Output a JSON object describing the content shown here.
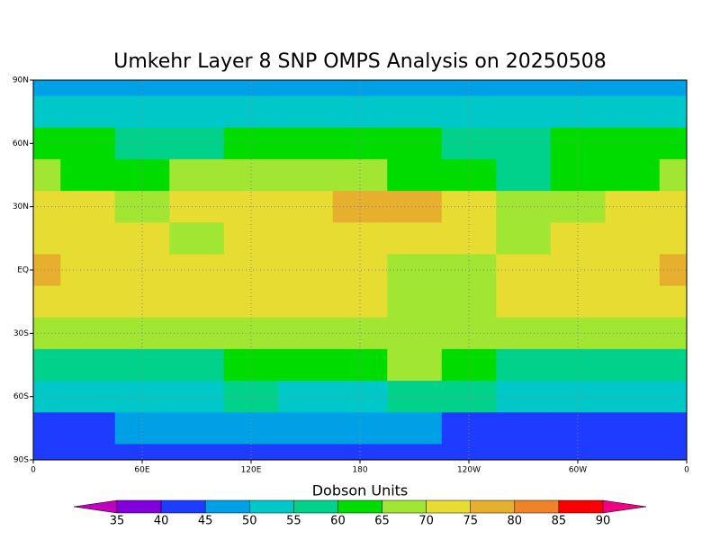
{
  "chart_data": {
    "type": "contour",
    "title": "Umkehr Layer 8 SNP OMPS Analysis on 20250508",
    "x": [
      0,
      30,
      60,
      90,
      120,
      150,
      180,
      210,
      240,
      270,
      300,
      330,
      360
    ],
    "y": [
      90,
      75,
      60,
      45,
      30,
      15,
      0,
      -15,
      -30,
      -45,
      -60,
      -75,
      -90
    ],
    "z": [
      [
        48,
        48,
        48,
        48,
        48,
        48,
        48,
        48,
        48,
        48,
        48,
        48,
        48
      ],
      [
        50,
        52,
        52,
        53,
        53,
        52,
        52,
        52,
        52,
        52,
        52,
        51,
        50
      ],
      [
        62,
        61,
        59,
        57,
        60,
        62,
        61,
        60,
        58,
        57,
        60,
        62,
        62
      ],
      [
        65,
        62,
        60,
        66,
        67,
        68,
        66,
        62,
        60,
        58,
        60,
        63,
        65
      ],
      [
        70,
        70,
        68,
        72,
        73,
        72,
        75,
        78,
        72,
        68,
        66,
        70,
        70
      ],
      [
        72,
        73,
        71,
        69,
        72,
        74,
        72,
        72,
        70,
        68,
        70,
        72,
        72
      ],
      [
        77,
        72,
        72,
        71,
        72,
        71,
        72,
        69,
        69,
        71,
        70,
        74,
        77
      ],
      [
        70,
        72,
        72,
        72,
        70,
        70,
        70,
        68,
        68,
        70,
        72,
        72,
        70
      ],
      [
        66,
        66,
        67,
        67,
        66,
        66,
        66,
        66,
        68,
        66,
        66,
        65,
        66
      ],
      [
        58,
        58,
        58,
        58,
        60,
        62,
        63,
        68,
        62,
        57,
        58,
        58,
        58
      ],
      [
        52,
        52,
        52,
        53,
        55,
        52,
        54,
        55,
        55,
        52,
        53,
        52,
        52
      ],
      [
        43,
        44,
        45,
        47,
        46,
        47,
        46,
        45,
        44,
        42,
        43,
        43,
        43
      ],
      [
        42,
        42,
        42,
        42,
        42,
        42,
        42,
        42,
        42,
        42,
        42,
        42,
        42
      ]
    ],
    "xlim": [
      0,
      360
    ],
    "ylim": [
      -90,
      90
    ],
    "xticks": [
      {
        "value": 0,
        "label": "0"
      },
      {
        "value": 60,
        "label": "60E"
      },
      {
        "value": 120,
        "label": "120E"
      },
      180,
      {
        "value": 240,
        "label": "120W"
      },
      {
        "value": 300,
        "label": "60W"
      },
      {
        "value": 360,
        "label": "0"
      }
    ],
    "yticks": [
      {
        "value": -90,
        "label": "90S"
      },
      {
        "value": -60,
        "label": "60S"
      },
      {
        "value": -30,
        "label": "30S"
      },
      {
        "value": 0,
        "label": "EQ"
      },
      {
        "value": 30,
        "label": "30N"
      },
      {
        "value": 60,
        "label": "60N"
      },
      {
        "value": 90,
        "label": "90N"
      }
    ],
    "grid": true,
    "colorbar": {
      "label": "Dobson Units",
      "levels": [
        35,
        40,
        45,
        50,
        55,
        60,
        65,
        70,
        75,
        80,
        85,
        90
      ],
      "colors": [
        "#c000c0",
        "#8200dc",
        "#1e3cff",
        "#00a0e6",
        "#00c8c8",
        "#00d28c",
        "#00dc00",
        "#a0e632",
        "#e6dc32",
        "#e6af2d",
        "#f08228",
        "#fa0000",
        "#f00082"
      ]
    }
  }
}
